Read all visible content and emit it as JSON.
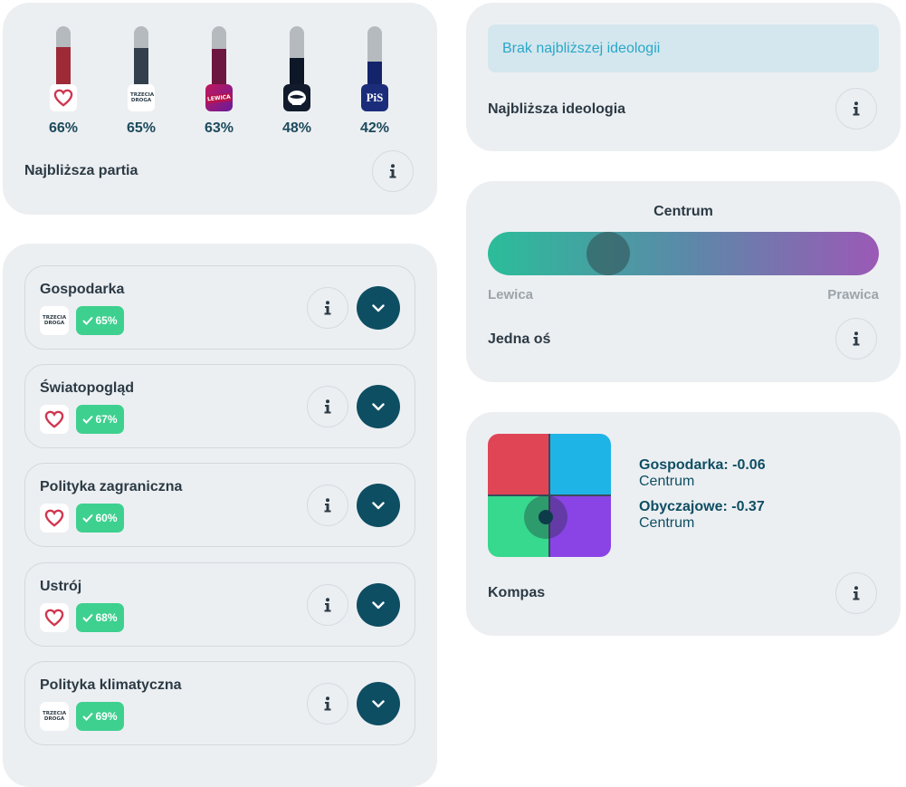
{
  "closest_party": {
    "title": "Najbliższa partia",
    "parties": [
      {
        "logo": "heart-icon",
        "logo_text": "",
        "percent": "66%",
        "value": 66,
        "color": "#9e2a37"
      },
      {
        "logo": "trzecia-droga-logo",
        "logo_text": "TRZECIA DROGA",
        "percent": "65%",
        "value": 65,
        "color": "#333f4c"
      },
      {
        "logo": "lewica-logo",
        "logo_text": "LEWICA",
        "percent": "63%",
        "value": 63,
        "color": "#6d1640"
      },
      {
        "logo": "konfederacja-logo",
        "logo_text": "",
        "percent": "48%",
        "value": 48,
        "color": "#0d1727"
      },
      {
        "logo": "pis-logo",
        "logo_text": "PiS",
        "percent": "42%",
        "value": 42,
        "color": "#14246b"
      }
    ]
  },
  "categories": [
    {
      "name": "Gospodarka",
      "logo": "trzecia-droga-logo",
      "logo_text": "TRZECIA DROGA",
      "badge": "65%"
    },
    {
      "name": "Światopogląd",
      "logo": "heart-icon",
      "logo_text": "",
      "badge": "67%"
    },
    {
      "name": "Polityka zagraniczna",
      "logo": "heart-icon",
      "logo_text": "",
      "badge": "60%"
    },
    {
      "name": "Ustrój",
      "logo": "heart-icon",
      "logo_text": "",
      "badge": "68%"
    },
    {
      "name": "Polityka klimatyczna",
      "logo": "trzecia-droga-logo",
      "logo_text": "TRZECIA DROGA",
      "badge": "69%"
    }
  ],
  "ideology": {
    "alert": "Brak najbliższej ideologii",
    "title": "Najbliższa ideologia"
  },
  "axis": {
    "position_label": "Centrum",
    "left_label": "Lewica",
    "right_label": "Prawica",
    "title": "Jedna oś",
    "position_fraction": 0.19
  },
  "compass": {
    "econ_label": "Gospodarka: -0.06",
    "econ_sub": "Centrum",
    "social_label": "Obyczajowe: -0.37",
    "social_sub": "Centrum",
    "title": "Kompas",
    "colors": {
      "top_left": "#e04556",
      "top_right": "#1fb4e6",
      "bottom_left": "#36d98d",
      "bottom_right": "#8a44e6"
    }
  },
  "colors": {
    "accent": "#0e4e63",
    "badge": "#3ed08f",
    "alert_bg": "#d4e7ee",
    "alert_text": "#2aa7c9"
  }
}
